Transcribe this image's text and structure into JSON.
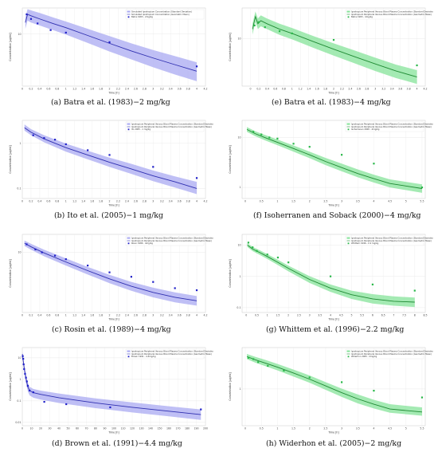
{
  "colors": {
    "blue_line": "#2f2fb0",
    "blue_band": "#a9a9f2",
    "blue_point": "#1f1fc8",
    "green_line": "#1f8a33",
    "green_band": "#86e39a",
    "green_point": "#2ab84a"
  },
  "chart_data": [
    {
      "id": "a",
      "type": "line",
      "scale": "log",
      "color": "blue",
      "caption": "(a) Batra et al. (1983)−2 mg/kg",
      "xlabel": "Time [h]",
      "ylabel": "Concentration [μg/ml]",
      "xlim": [
        0,
        4.2
      ],
      "ylim": [
        1.6,
        25
      ],
      "xticks": [
        0,
        0.2,
        0.4,
        0.6,
        0.8,
        1,
        1.2,
        1.4,
        1.6,
        1.8,
        2,
        2.2,
        2.4,
        2.6,
        2.8,
        3,
        3.2,
        3.4,
        3.6,
        3.8,
        4,
        4.2
      ],
      "yticks": [
        10
      ],
      "legend": [
        "Simulated Ipratropium Concentration (Standard Deviation)",
        "Simulated Ipratropium Concentration (Geometric Mean)",
        "Batra 1983 - 2mg/kg"
      ],
      "legend_position": "top-right",
      "line": {
        "x": [
          0.07,
          0.12,
          0.2,
          0.4,
          0.7,
          1,
          1.5,
          2,
          2.5,
          3,
          3.5,
          4
        ],
        "y": [
          15,
          20,
          19,
          17,
          14.5,
          12.5,
          9.5,
          7.2,
          5.5,
          4.3,
          3.4,
          2.7
        ]
      },
      "band_lower": [
        12,
        16,
        15,
        13.5,
        11.5,
        9.8,
        7.3,
        5.4,
        4.1,
        3.1,
        2.4,
        1.9
      ],
      "band_upper": [
        18,
        24,
        23,
        21,
        18,
        15.5,
        12,
        9.3,
        7.2,
        5.7,
        4.6,
        3.7
      ],
      "points": {
        "x": [
          0.1,
          0.2,
          0.35,
          0.65,
          1,
          2,
          4
        ],
        "y": [
          20,
          17,
          14.5,
          11.5,
          10.5,
          7.5,
          3.2
        ]
      }
    },
    {
      "id": "b",
      "type": "line",
      "scale": "log",
      "color": "blue",
      "caption": "(b) Ito et al. (2005)−1 mg/kg",
      "xlabel": "Time [h]",
      "ylabel": "Concentration [μg/ml]",
      "xlim": [
        0,
        4.2
      ],
      "ylim": [
        0.06,
        3.2
      ],
      "xticks": [
        0,
        0.2,
        0.4,
        0.6,
        0.8,
        1,
        1.2,
        1.4,
        1.6,
        1.8,
        2,
        2.2,
        2.4,
        2.6,
        2.8,
        3,
        3.2,
        3.4,
        3.6,
        3.8,
        4,
        4.2
      ],
      "yticks": [
        0.1,
        1
      ],
      "legend": [
        "Ipratropium Peripheral Venous Blood Plasma Concentration (Standard Deviation)",
        "Ipratropium Peripheral Venous Blood Plasma Concentration (Geometric Mean)",
        "Ito 2005 - 1 mg/kg"
      ],
      "legend_position": "top-right",
      "line": {
        "x": [
          0.05,
          0.2,
          0.5,
          1,
          1.5,
          2,
          2.5,
          3,
          3.5,
          4
        ],
        "y": [
          2.2,
          1.75,
          1.25,
          0.8,
          0.55,
          0.38,
          0.27,
          0.19,
          0.14,
          0.1
        ]
      },
      "band_lower": [
        1.9,
        1.5,
        1.05,
        0.65,
        0.44,
        0.3,
        0.21,
        0.145,
        0.105,
        0.075
      ],
      "band_upper": [
        2.6,
        2.05,
        1.5,
        0.98,
        0.68,
        0.48,
        0.35,
        0.25,
        0.185,
        0.14
      ],
      "points": {
        "x": [
          0.25,
          0.5,
          0.75,
          1,
          1.5,
          2,
          3,
          4
        ],
        "y": [
          1.5,
          1.3,
          1.2,
          0.95,
          0.7,
          0.55,
          0.3,
          0.17
        ]
      }
    },
    {
      "id": "c",
      "type": "line",
      "scale": "log",
      "color": "blue",
      "caption": "(c) Rosin et al. (1989)−4 mg/kg",
      "xlabel": "Time [h]",
      "ylabel": "Concentration [μg/ml]",
      "xlim": [
        0,
        4.2
      ],
      "ylim": [
        1.4,
        18
      ],
      "xticks": [
        0,
        0.2,
        0.4,
        0.6,
        0.8,
        1,
        1.2,
        1.4,
        1.6,
        1.8,
        2,
        2.2,
        2.4,
        2.6,
        2.8,
        3,
        3.2,
        3.4,
        3.6,
        3.8,
        4,
        4.2
      ],
      "yticks": [
        10
      ],
      "legend": [
        "Ipratropium Peripheral Venous Blood Plasma Concentration (Standard Deviation)",
        "Ipratropium Peripheral Venous Blood Plasma Concentration (Geometric Mean)",
        "Rosin 1989 - 4mg/kg"
      ],
      "legend_position": "top-right",
      "line": {
        "x": [
          0.05,
          0.2,
          0.5,
          1,
          1.5,
          2,
          2.5,
          3,
          3.5,
          4
        ],
        "y": [
          13.5,
          12,
          9.8,
          7.3,
          5.5,
          4.2,
          3.3,
          2.7,
          2.3,
          2.05
        ]
      },
      "band_lower": [
        12.3,
        10.9,
        8.8,
        6.5,
        4.85,
        3.65,
        2.85,
        2.3,
        1.95,
        1.75
      ],
      "band_upper": [
        14.7,
        13.2,
        10.9,
        8.2,
        6.2,
        4.8,
        3.8,
        3.15,
        2.7,
        2.4
      ],
      "points": {
        "x": [
          0.1,
          0.3,
          0.45,
          0.75,
          1,
          1.5,
          2,
          2.5,
          3,
          3.5,
          4
        ],
        "y": [
          13,
          11,
          10,
          9,
          8,
          6.5,
          5.2,
          4.5,
          3.8,
          3.1,
          2.9
        ]
      }
    },
    {
      "id": "d",
      "type": "line",
      "scale": "log",
      "color": "blue",
      "caption": "(d) Brown et al. (1991)−4.4 mg/kg",
      "xlabel": "Time [h]",
      "ylabel": "Concentration [μg/ml]",
      "xlim": [
        0,
        200
      ],
      "ylim": [
        0.007,
        30
      ],
      "xticks": [
        0,
        10,
        20,
        30,
        40,
        50,
        60,
        70,
        80,
        90,
        100,
        110,
        120,
        130,
        140,
        150,
        160,
        170,
        180,
        190,
        200
      ],
      "yticks": [
        0.01,
        0.1,
        1,
        10
      ],
      "legend": [
        "Ipratropium Peripheral Venous Blood Plasma Concentration (Standard Deviation)",
        "Ipratropium Peripheral Venous Blood Plasma Concentration (Geometric Mean)",
        "Brown 1991 - 4.4mg/kg"
      ],
      "legend_position": "top-right",
      "line": {
        "x": [
          0.1,
          1,
          2,
          4,
          6,
          8,
          12,
          20,
          40,
          80,
          120,
          160,
          195
        ],
        "y": [
          15,
          7.5,
          3.5,
          1.1,
          0.45,
          0.3,
          0.24,
          0.2,
          0.14,
          0.08,
          0.05,
          0.033,
          0.023
        ]
      },
      "band_lower": [
        10,
        5,
        2.3,
        0.7,
        0.28,
        0.18,
        0.14,
        0.115,
        0.08,
        0.046,
        0.029,
        0.019,
        0.013
      ],
      "band_upper": [
        20,
        10,
        5,
        1.6,
        0.7,
        0.45,
        0.36,
        0.3,
        0.22,
        0.13,
        0.085,
        0.056,
        0.04
      ],
      "points": {
        "x": [
          0.5,
          1,
          1.5,
          2,
          3,
          4,
          5,
          6,
          8,
          12,
          24,
          48,
          96,
          195
        ],
        "y": [
          12,
          9,
          5,
          3,
          1.8,
          1.2,
          0.8,
          0.5,
          0.3,
          0.25,
          0.09,
          0.07,
          0.05,
          0.04
        ]
      }
    },
    {
      "id": "e",
      "type": "line",
      "scale": "log",
      "color": "green",
      "caption": "(e) Batra et al. (1983)−4 mg/kg",
      "xlabel": "Time [h]",
      "ylabel": "Concentration [μg/ml]",
      "xlim": [
        -0.2,
        4.2
      ],
      "ylim": [
        1.8,
        30
      ],
      "xticks": [
        0,
        0.2,
        0.4,
        0.6,
        0.8,
        1,
        1.2,
        1.4,
        1.6,
        1.8,
        2,
        2.2,
        2.4,
        2.6,
        2.8,
        3,
        3.2,
        3.4,
        3.6,
        3.8,
        4,
        4.2
      ],
      "yticks": [
        10
      ],
      "legend": [
        "Ipratropium Peripheral Venous Blood Plasma Concentration (Standard Deviation)",
        "Ipratropium Peripheral Venous Blood Plasma Concentration (Geometric Mean)",
        "Batra 1983 - 4mg/kg"
      ],
      "legend_position": "top-right",
      "line": {
        "x": [
          0.05,
          0.12,
          0.18,
          0.25,
          0.4,
          0.7,
          1,
          1.5,
          2,
          2.5,
          3,
          3.5,
          4
        ],
        "y": [
          14,
          22,
          17,
          19,
          17,
          14,
          12,
          9,
          6.8,
          5.2,
          4,
          3.1,
          2.5
        ]
      },
      "band_lower": [
        11.5,
        18,
        14,
        15.5,
        14,
        11.4,
        9.7,
        7.2,
        5.4,
        4.1,
        3.1,
        2.4,
        1.95
      ],
      "band_upper": [
        17,
        26.5,
        20.5,
        23,
        20.5,
        17,
        14.6,
        11,
        8.4,
        6.5,
        5,
        3.9,
        3.2
      ],
      "points": {
        "x": [
          0.1,
          0.2,
          0.35,
          0.7,
          1,
          2,
          4
        ],
        "y": [
          16,
          18,
          15,
          13,
          12,
          9.5,
          3.8
        ]
      }
    },
    {
      "id": "f",
      "type": "line",
      "scale": "log",
      "color": "green",
      "caption": "(f) Isoherranen and Soback (2000)−4 mg/kg",
      "xlabel": "Time [h]",
      "ylabel": "Concentration [μg/ml]",
      "xlim": [
        -0.1,
        5.6
      ],
      "ylim": [
        0.6,
        22
      ],
      "xticks": [
        0,
        0.5,
        1,
        1.5,
        2,
        2.5,
        3,
        3.5,
        4,
        4.5,
        5,
        5.5
      ],
      "yticks": [
        1,
        10
      ],
      "legend": [
        "Ipratropium Peripheral Venous Blood Plasma Concentration (Standard Deviation)",
        "Ipratropium Peripheral Venous Blood Plasma Concentration (Geometric Mean)",
        "Isoherranen 2000 - 4mg/kg"
      ],
      "legend_position": "top-right",
      "line": {
        "x": [
          0.05,
          0.3,
          0.6,
          1,
          1.5,
          2,
          2.5,
          3,
          3.5,
          4,
          4.5,
          5.5
        ],
        "y": [
          14.5,
          12,
          10,
          8,
          6,
          4.5,
          3.3,
          2.5,
          1.9,
          1.5,
          1.2,
          0.95
        ]
      },
      "band_lower": [
        13,
        10.7,
        8.8,
        7,
        5.2,
        3.85,
        2.8,
        2.1,
        1.6,
        1.25,
        1,
        0.78
      ],
      "band_upper": [
        16.2,
        13.4,
        11.3,
        9.1,
        6.9,
        5.2,
        3.9,
        3,
        2.3,
        1.8,
        1.45,
        1.15
      ],
      "points": {
        "x": [
          0.25,
          0.5,
          0.75,
          1,
          1.5,
          2,
          3,
          4,
          5.5
        ],
        "y": [
          13,
          11.5,
          10,
          9.5,
          7.5,
          6.5,
          4.5,
          3,
          1
        ]
      }
    },
    {
      "id": "g",
      "type": "line",
      "scale": "log",
      "color": "green",
      "caption": "(g) Whittem et al. (1996)−2.2 mg/kg",
      "xlabel": "Time [h]",
      "ylabel": "Concentration [μg/ml]",
      "xlim": [
        -0.2,
        8.5
      ],
      "ylim": [
        0.07,
        22
      ],
      "xticks": [
        0,
        0.5,
        1,
        1.5,
        2,
        2.5,
        3,
        3.5,
        4,
        4.5,
        5,
        5.5,
        6,
        6.5,
        7,
        7.5,
        8,
        8.5
      ],
      "yticks": [
        0.1,
        1,
        10
      ],
      "legend": [
        "Ipratropium Peripheral Venous Blood Plasma Concentration (Standard Deviation)",
        "Ipratropium Peripheral Venous Blood Plasma Concentration (Geometric Mean)",
        "Whittem 1996 - 2.2 mg/kg"
      ],
      "legend_position": "top-right",
      "line": {
        "x": [
          0.05,
          0.3,
          0.7,
          1,
          1.5,
          2,
          3,
          4,
          5,
          6,
          7,
          8
        ],
        "y": [
          10,
          7.5,
          5.5,
          4.3,
          2.8,
          1.8,
          0.8,
          0.42,
          0.26,
          0.19,
          0.16,
          0.15
        ]
      },
      "band_lower": [
        8.7,
        6.4,
        4.6,
        3.6,
        2.3,
        1.45,
        0.62,
        0.32,
        0.19,
        0.135,
        0.115,
        0.105
      ],
      "band_upper": [
        11.5,
        8.7,
        6.5,
        5.1,
        3.4,
        2.2,
        1.02,
        0.55,
        0.35,
        0.27,
        0.23,
        0.21
      ],
      "points": {
        "x": [
          0.1,
          0.3,
          0.5,
          1,
          1.5,
          2,
          4,
          6,
          8
        ],
        "y": [
          12,
          8.5,
          6.5,
          5,
          4,
          2.8,
          1,
          0.55,
          0.35
        ]
      }
    },
    {
      "id": "h",
      "type": "line",
      "scale": "log",
      "color": "green",
      "caption": "(h) Widerhon et al. (2005)−2 mg/kg",
      "xlabel": "Time [h]",
      "ylabel": "Concentration [μg/ml]",
      "xlim": [
        -0.1,
        5.6
      ],
      "ylim": [
        0.11,
        12
      ],
      "xticks": [
        0,
        0.5,
        1,
        1.5,
        2,
        2.5,
        3,
        3.5,
        4,
        4.5,
        5,
        5.5
      ],
      "yticks": [
        1
      ],
      "legend": [
        "Ipratropium Peripheral Venous Blood Plasma Concentration (Standard Deviation)",
        "Ipratropium Peripheral Venous Blood Plasma Concentration (Geometric Mean)",
        "Widerhon 2005 - 2mg/kg"
      ],
      "legend_position": "top-right",
      "line": {
        "x": [
          0.05,
          0.3,
          0.6,
          1,
          1.5,
          2,
          2.5,
          3,
          3.5,
          4,
          4.5,
          5.5
        ],
        "y": [
          7,
          5.8,
          4.8,
          3.7,
          2.6,
          1.8,
          1.2,
          0.8,
          0.55,
          0.4,
          0.3,
          0.25
        ]
      },
      "band_lower": [
        6,
        4.9,
        4,
        3.05,
        2.1,
        1.45,
        0.95,
        0.62,
        0.42,
        0.31,
        0.24,
        0.2
      ],
      "band_upper": [
        8.2,
        6.9,
        5.8,
        4.5,
        3.2,
        2.25,
        1.5,
        1.02,
        0.72,
        0.52,
        0.4,
        0.33
      ],
      "points": {
        "x": [
          0.1,
          0.25,
          0.4,
          0.7,
          1.2,
          2,
          3,
          4,
          5.5
        ],
        "y": [
          6.5,
          6,
          5,
          4,
          3,
          2,
          1.5,
          0.9,
          0.6
        ]
      }
    }
  ]
}
